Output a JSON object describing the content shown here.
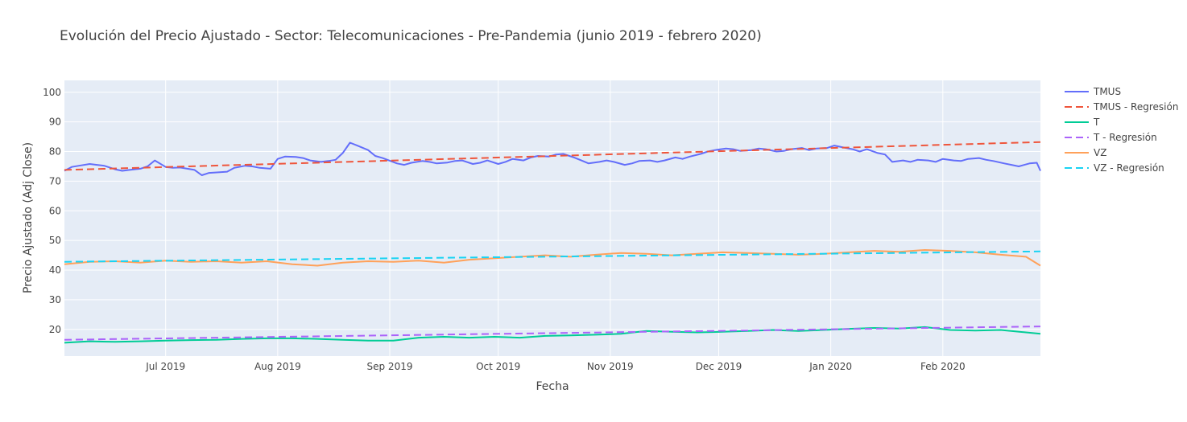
{
  "chart_data": {
    "type": "line",
    "title": "Evolución del Precio Ajustado - Sector: Telecomunicaciones - Pre-Pandemia (junio 2019 - febrero 2020)",
    "xlabel": "Fecha",
    "ylabel": "Precio Ajustado (Adj Close)",
    "xlim": [
      "2019-06-03",
      "2020-02-28"
    ],
    "ylim": [
      11,
      104
    ],
    "grid": true,
    "legend_position": "right",
    "x_ticks": [
      {
        "date": "2019-07-01",
        "label": "Jul 2019"
      },
      {
        "date": "2019-08-01",
        "label": "Aug 2019"
      },
      {
        "date": "2019-09-01",
        "label": "Sep 2019"
      },
      {
        "date": "2019-10-01",
        "label": "Oct 2019"
      },
      {
        "date": "2019-11-01",
        "label": "Nov 2019"
      },
      {
        "date": "2019-12-01",
        "label": "Dec 2019"
      },
      {
        "date": "2020-01-01",
        "label": "Jan 2020"
      },
      {
        "date": "2020-02-01",
        "label": "Feb 2020"
      }
    ],
    "y_ticks": [
      20,
      30,
      40,
      50,
      60,
      70,
      80,
      90,
      100
    ],
    "series": [
      {
        "name": "TMUS",
        "color": "#636efa",
        "dash": "solid",
        "points": [
          [
            "2019-06-03",
            73.5
          ],
          [
            "2019-06-05",
            74.8
          ],
          [
            "2019-06-07",
            75.2
          ],
          [
            "2019-06-10",
            75.8
          ],
          [
            "2019-06-12",
            75.5
          ],
          [
            "2019-06-14",
            75.2
          ],
          [
            "2019-06-17",
            74.0
          ],
          [
            "2019-06-19",
            73.5
          ],
          [
            "2019-06-21",
            73.8
          ],
          [
            "2019-06-24",
            74.2
          ],
          [
            "2019-06-26",
            75.0
          ],
          [
            "2019-06-28",
            77.0
          ],
          [
            "2019-07-01",
            74.8
          ],
          [
            "2019-07-03",
            74.5
          ],
          [
            "2019-07-05",
            74.6
          ],
          [
            "2019-07-09",
            73.8
          ],
          [
            "2019-07-11",
            72.0
          ],
          [
            "2019-07-13",
            72.8
          ],
          [
            "2019-07-16",
            73.0
          ],
          [
            "2019-07-18",
            73.2
          ],
          [
            "2019-07-20",
            74.5
          ],
          [
            "2019-07-23",
            75.2
          ],
          [
            "2019-07-25",
            75.0
          ],
          [
            "2019-07-27",
            74.5
          ],
          [
            "2019-07-30",
            74.2
          ],
          [
            "2019-08-01",
            77.5
          ],
          [
            "2019-08-03",
            78.3
          ],
          [
            "2019-08-06",
            78.2
          ],
          [
            "2019-08-08",
            77.8
          ],
          [
            "2019-08-10",
            77.0
          ],
          [
            "2019-08-13",
            76.5
          ],
          [
            "2019-08-15",
            76.8
          ],
          [
            "2019-08-17",
            77.2
          ],
          [
            "2019-08-19",
            79.5
          ],
          [
            "2019-08-21",
            83.0
          ],
          [
            "2019-08-23",
            82.0
          ],
          [
            "2019-08-26",
            80.5
          ],
          [
            "2019-08-28",
            78.5
          ],
          [
            "2019-08-30",
            77.8
          ],
          [
            "2019-09-03",
            76.0
          ],
          [
            "2019-09-05",
            75.5
          ],
          [
            "2019-09-07",
            76.2
          ],
          [
            "2019-09-10",
            76.8
          ],
          [
            "2019-09-12",
            76.5
          ],
          [
            "2019-09-14",
            76.0
          ],
          [
            "2019-09-17",
            76.3
          ],
          [
            "2019-09-19",
            76.8
          ],
          [
            "2019-09-21",
            77.0
          ],
          [
            "2019-09-24",
            75.8
          ],
          [
            "2019-09-26",
            76.2
          ],
          [
            "2019-09-28",
            77.0
          ],
          [
            "2019-10-01",
            75.8
          ],
          [
            "2019-10-03",
            76.5
          ],
          [
            "2019-10-05",
            77.5
          ],
          [
            "2019-10-08",
            77.0
          ],
          [
            "2019-10-10",
            78.0
          ],
          [
            "2019-10-12",
            78.5
          ],
          [
            "2019-10-15",
            78.3
          ],
          [
            "2019-10-17",
            79.0
          ],
          [
            "2019-10-19",
            79.2
          ],
          [
            "2019-10-22",
            78.0
          ],
          [
            "2019-10-24",
            77.0
          ],
          [
            "2019-10-26",
            76.0
          ],
          [
            "2019-10-29",
            76.5
          ],
          [
            "2019-10-31",
            77.0
          ],
          [
            "2019-11-02",
            76.5
          ],
          [
            "2019-11-05",
            75.5
          ],
          [
            "2019-11-07",
            76.0
          ],
          [
            "2019-11-09",
            76.8
          ],
          [
            "2019-11-12",
            77.0
          ],
          [
            "2019-11-14",
            76.5
          ],
          [
            "2019-11-16",
            77.0
          ],
          [
            "2019-11-19",
            78.0
          ],
          [
            "2019-11-21",
            77.5
          ],
          [
            "2019-11-23",
            78.3
          ],
          [
            "2019-11-26",
            79.2
          ],
          [
            "2019-11-28",
            80.0
          ],
          [
            "2019-11-30",
            80.5
          ],
          [
            "2019-12-03",
            81.0
          ],
          [
            "2019-12-05",
            80.8
          ],
          [
            "2019-12-07",
            80.2
          ],
          [
            "2019-12-10",
            80.5
          ],
          [
            "2019-12-12",
            81.0
          ],
          [
            "2019-12-14",
            80.8
          ],
          [
            "2019-12-17",
            80.0
          ],
          [
            "2019-12-19",
            80.2
          ],
          [
            "2019-12-21",
            80.8
          ],
          [
            "2019-12-24",
            81.2
          ],
          [
            "2019-12-26",
            80.5
          ],
          [
            "2019-12-28",
            81.0
          ],
          [
            "2019-12-31",
            81.2
          ],
          [
            "2020-01-02",
            82.0
          ],
          [
            "2020-01-04",
            81.5
          ],
          [
            "2020-01-07",
            80.8
          ],
          [
            "2020-01-09",
            80.0
          ],
          [
            "2020-01-11",
            80.8
          ],
          [
            "2020-01-14",
            79.5
          ],
          [
            "2020-01-16",
            79.0
          ],
          [
            "2020-01-18",
            76.5
          ],
          [
            "2020-01-21",
            77.0
          ],
          [
            "2020-01-23",
            76.5
          ],
          [
            "2020-01-25",
            77.2
          ],
          [
            "2020-01-28",
            77.0
          ],
          [
            "2020-01-30",
            76.5
          ],
          [
            "2020-02-01",
            77.5
          ],
          [
            "2020-02-04",
            77.0
          ],
          [
            "2020-02-06",
            76.8
          ],
          [
            "2020-02-08",
            77.5
          ],
          [
            "2020-02-11",
            77.8
          ],
          [
            "2020-02-13",
            77.2
          ],
          [
            "2020-02-15",
            76.8
          ],
          [
            "2020-02-18",
            76.0
          ],
          [
            "2020-02-20",
            75.5
          ],
          [
            "2020-02-22",
            75.0
          ],
          [
            "2020-02-25",
            76.0
          ],
          [
            "2020-02-27",
            76.2
          ],
          [
            "2020-02-28",
            73.5
          ]
        ]
      },
      {
        "name": "TMUS - Regresión",
        "color": "#ef553b",
        "dash": "dash",
        "points": [
          [
            "2019-06-03",
            73.8
          ],
          [
            "2020-02-28",
            83.2
          ]
        ]
      },
      {
        "name": "T",
        "color": "#00cc96",
        "dash": "solid",
        "points": [
          [
            "2019-06-03",
            15.5
          ],
          [
            "2019-06-10",
            16.0
          ],
          [
            "2019-06-17",
            15.8
          ],
          [
            "2019-06-24",
            16.0
          ],
          [
            "2019-07-01",
            16.2
          ],
          [
            "2019-07-08",
            16.4
          ],
          [
            "2019-07-15",
            16.5
          ],
          [
            "2019-07-22",
            16.8
          ],
          [
            "2019-07-29",
            17.0
          ],
          [
            "2019-08-05",
            17.0
          ],
          [
            "2019-08-12",
            16.8
          ],
          [
            "2019-08-19",
            16.5
          ],
          [
            "2019-08-26",
            16.2
          ],
          [
            "2019-09-02",
            16.2
          ],
          [
            "2019-09-09",
            17.2
          ],
          [
            "2019-09-16",
            17.5
          ],
          [
            "2019-09-23",
            17.2
          ],
          [
            "2019-09-30",
            17.5
          ],
          [
            "2019-10-07",
            17.2
          ],
          [
            "2019-10-14",
            17.8
          ],
          [
            "2019-10-21",
            18.0
          ],
          [
            "2019-10-28",
            18.2
          ],
          [
            "2019-11-04",
            18.5
          ],
          [
            "2019-11-11",
            19.5
          ],
          [
            "2019-11-18",
            19.2
          ],
          [
            "2019-11-25",
            19.0
          ],
          [
            "2019-12-02",
            19.2
          ],
          [
            "2019-12-09",
            19.5
          ],
          [
            "2019-12-16",
            19.8
          ],
          [
            "2019-12-23",
            19.5
          ],
          [
            "2019-12-30",
            19.8
          ],
          [
            "2020-01-06",
            20.2
          ],
          [
            "2020-01-13",
            20.5
          ],
          [
            "2020-01-20",
            20.3
          ],
          [
            "2020-01-27",
            20.8
          ],
          [
            "2020-02-03",
            19.8
          ],
          [
            "2020-02-10",
            19.6
          ],
          [
            "2020-02-17",
            19.8
          ],
          [
            "2020-02-24",
            19.0
          ],
          [
            "2020-02-28",
            18.5
          ]
        ]
      },
      {
        "name": "T - Regresión",
        "color": "#ab63fa",
        "dash": "dash",
        "points": [
          [
            "2019-06-03",
            16.5
          ],
          [
            "2020-02-28",
            21.0
          ]
        ]
      },
      {
        "name": "VZ",
        "color": "#ffa15a",
        "dash": "solid",
        "points": [
          [
            "2019-06-03",
            42.0
          ],
          [
            "2019-06-10",
            42.8
          ],
          [
            "2019-06-17",
            43.0
          ],
          [
            "2019-06-24",
            42.5
          ],
          [
            "2019-07-01",
            43.2
          ],
          [
            "2019-07-08",
            42.8
          ],
          [
            "2019-07-15",
            43.0
          ],
          [
            "2019-07-22",
            42.5
          ],
          [
            "2019-07-29",
            43.0
          ],
          [
            "2019-08-05",
            42.0
          ],
          [
            "2019-08-12",
            41.5
          ],
          [
            "2019-08-19",
            42.5
          ],
          [
            "2019-08-26",
            43.0
          ],
          [
            "2019-09-02",
            42.8
          ],
          [
            "2019-09-09",
            43.2
          ],
          [
            "2019-09-16",
            42.5
          ],
          [
            "2019-09-23",
            43.5
          ],
          [
            "2019-09-30",
            44.0
          ],
          [
            "2019-10-07",
            44.5
          ],
          [
            "2019-10-14",
            45.0
          ],
          [
            "2019-10-21",
            44.5
          ],
          [
            "2019-10-28",
            45.2
          ],
          [
            "2019-11-04",
            45.8
          ],
          [
            "2019-11-11",
            45.5
          ],
          [
            "2019-11-18",
            45.0
          ],
          [
            "2019-11-25",
            45.5
          ],
          [
            "2019-12-02",
            46.0
          ],
          [
            "2019-12-09",
            45.8
          ],
          [
            "2019-12-16",
            45.5
          ],
          [
            "2019-12-23",
            45.2
          ],
          [
            "2019-12-30",
            45.5
          ],
          [
            "2020-01-06",
            46.0
          ],
          [
            "2020-01-13",
            46.5
          ],
          [
            "2020-01-20",
            46.2
          ],
          [
            "2020-01-27",
            46.8
          ],
          [
            "2020-02-03",
            46.5
          ],
          [
            "2020-02-10",
            46.0
          ],
          [
            "2020-02-17",
            45.2
          ],
          [
            "2020-02-24",
            44.5
          ],
          [
            "2020-02-28",
            41.5
          ]
        ]
      },
      {
        "name": "VZ - Regresión",
        "color": "#19d3f3",
        "dash": "dash",
        "points": [
          [
            "2019-06-03",
            42.8
          ],
          [
            "2020-02-28",
            46.3
          ]
        ]
      }
    ]
  }
}
